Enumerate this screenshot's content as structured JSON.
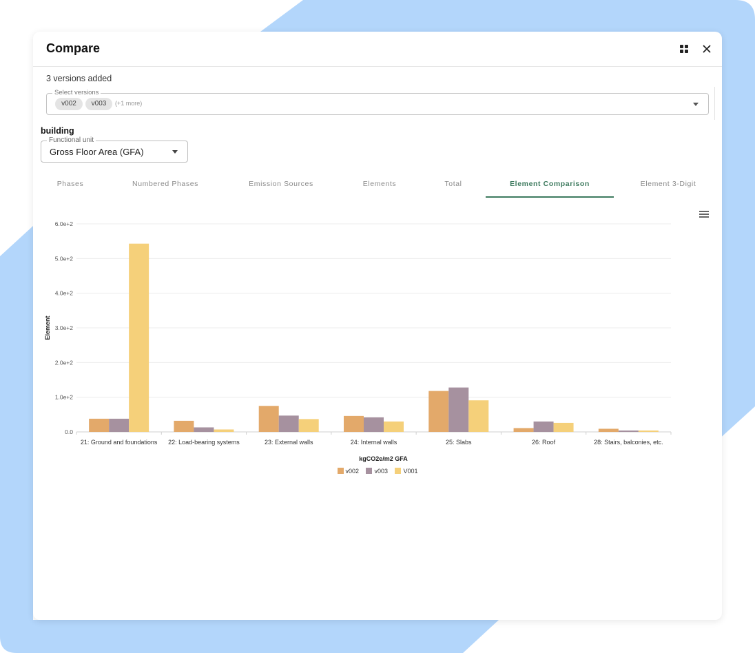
{
  "theme": {
    "backdrop": "#b3d6fb",
    "accent": "#3d7a5e"
  },
  "dialog": {
    "title": "Compare",
    "icons": {
      "layout": "grid-icon",
      "close": "close-icon"
    }
  },
  "versions": {
    "count_text": "3 versions added",
    "select_label": "Select versions",
    "chips": [
      "v002",
      "v003"
    ],
    "more_text": "(+1 more)"
  },
  "building": {
    "label": "building",
    "functional_unit_label": "Functional unit",
    "functional_unit_value": "Gross Floor Area (GFA)"
  },
  "tabs": [
    {
      "label": "Phases",
      "active": false
    },
    {
      "label": "Numbered Phases",
      "active": false
    },
    {
      "label": "Emission Sources",
      "active": false
    },
    {
      "label": "Elements",
      "active": false
    },
    {
      "label": "Total",
      "active": false
    },
    {
      "label": "Element Comparison",
      "active": true
    },
    {
      "label": "Element 3-Digit",
      "active": false
    }
  ],
  "chart_menu_icon": "hamburger-menu-icon",
  "chart_data": {
    "type": "bar",
    "xlabel": "kgCO2e/m2 GFA",
    "ylabel": "Element",
    "ylim": [
      0,
      600
    ],
    "yticks": [
      "0.0",
      "1.0e+2",
      "2.0e+2",
      "3.0e+2",
      "4.0e+2",
      "5.0e+2",
      "6.0e+2"
    ],
    "grid": true,
    "legend": "bottom",
    "categories": [
      "21: Ground and foundations",
      "22: Load-bearing systems",
      "23: External walls",
      "24: Internal walls",
      "25: Slabs",
      "26: Roof",
      "28: Stairs, balconies, etc."
    ],
    "series": [
      {
        "name": "v002",
        "color": "#e3a96a",
        "values": [
          38,
          32,
          75,
          46,
          118,
          11,
          9
        ]
      },
      {
        "name": "v003",
        "color": "#a6919f",
        "values": [
          38,
          13,
          47,
          42,
          128,
          30,
          4
        ]
      },
      {
        "name": "V001",
        "color": "#f5d07a",
        "values": [
          543,
          7,
          37,
          30,
          91,
          26,
          4
        ]
      }
    ]
  }
}
